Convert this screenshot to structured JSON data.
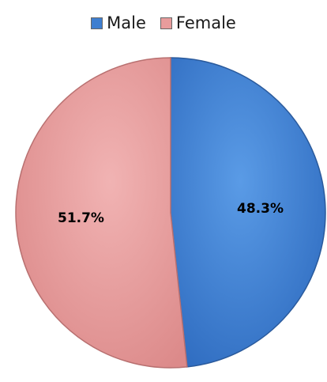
{
  "chart_data": {
    "type": "pie",
    "title": "",
    "legend_position": "top",
    "slices": [
      {
        "name": "Male",
        "value": 48.3,
        "label": "48.3%",
        "color": "#3f7fd0"
      },
      {
        "name": "Female",
        "value": 51.7,
        "label": "51.7%",
        "color": "#e89c9c"
      }
    ]
  }
}
